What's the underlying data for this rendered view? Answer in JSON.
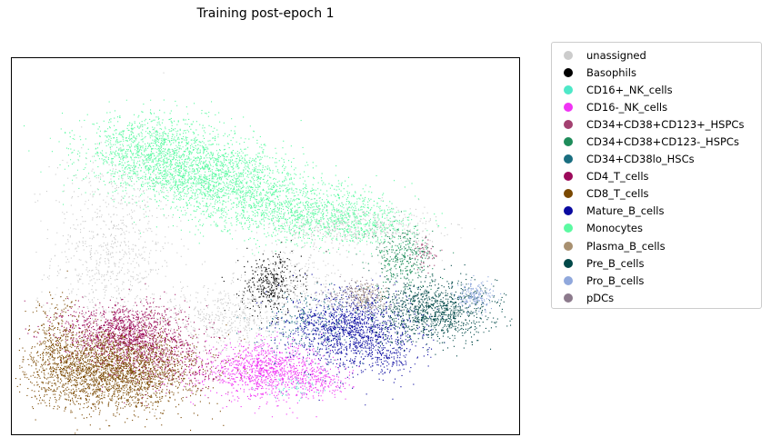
{
  "chart_data": {
    "type": "scatter",
    "title": "Training post-epoch 1",
    "xlabel": "",
    "ylabel": "",
    "axis_ticks": false,
    "grid": false,
    "legend_placement": "outside-right",
    "xlim": [
      0,
      100
    ],
    "ylim": [
      0,
      100
    ],
    "series": [
      {
        "name": "unassigned",
        "color": "#cccccc",
        "clusters": [
          {
            "cx": 20,
            "cy": 48,
            "sx": 6,
            "sy": 14,
            "n": 900
          },
          {
            "cx": 42,
            "cy": 31,
            "sx": 7,
            "sy": 4,
            "n": 500
          },
          {
            "cx": 68,
            "cy": 55,
            "sx": 8,
            "sy": 3,
            "n": 500
          },
          {
            "cx": 55,
            "cy": 40,
            "sx": 6,
            "sy": 5,
            "n": 300
          }
        ]
      },
      {
        "name": "Basophils",
        "color": "#000000",
        "clusters": [
          {
            "cx": 51,
            "cy": 40,
            "sx": 3,
            "sy": 4,
            "n": 350
          }
        ]
      },
      {
        "name": "CD16+_NK_cells",
        "color": "#4ee8c8",
        "clusters": [
          {
            "cx": 55,
            "cy": 13,
            "sx": 3,
            "sy": 1.5,
            "n": 60
          }
        ]
      },
      {
        "name": "CD16-_NK_cells",
        "color": "#f034f4",
        "clusters": [
          {
            "cx": 50,
            "cy": 17,
            "sx": 6,
            "sy": 3.5,
            "n": 1100
          },
          {
            "cx": 61,
            "cy": 14,
            "sx": 3,
            "sy": 2,
            "n": 150
          }
        ]
      },
      {
        "name": "CD34+CD38+CD123+_HSPCs",
        "color": "#a34070",
        "clusters": [
          {
            "cx": 81,
            "cy": 48,
            "sx": 1.2,
            "sy": 2,
            "n": 60
          }
        ]
      },
      {
        "name": "CD34+CD38+CD123-_HSPCs",
        "color": "#1e8c5a",
        "clusters": [
          {
            "cx": 77,
            "cy": 47,
            "sx": 3,
            "sy": 4,
            "n": 350
          }
        ]
      },
      {
        "name": "CD34+CD38lo_HSCs",
        "color": "#1a6e80",
        "clusters": [
          {
            "cx": 59,
            "cy": 30,
            "sx": 5,
            "sy": 4,
            "n": 250
          }
        ]
      },
      {
        "name": "CD4_T_cells",
        "color": "#9c0a5a",
        "clusters": [
          {
            "cx": 22,
            "cy": 27,
            "sx": 6,
            "sy": 4,
            "n": 1300
          },
          {
            "cx": 31,
            "cy": 19,
            "sx": 6,
            "sy": 4,
            "n": 400
          }
        ]
      },
      {
        "name": "CD8_T_cells",
        "color": "#7a4800",
        "clusters": [
          {
            "cx": 20,
            "cy": 17,
            "sx": 8,
            "sy": 5,
            "n": 2600
          },
          {
            "cx": 9,
            "cy": 24,
            "sx": 2.5,
            "sy": 6,
            "n": 300
          }
        ]
      },
      {
        "name": "Mature_B_cells",
        "color": "#0a0aa0",
        "clusters": [
          {
            "cx": 67,
            "cy": 28,
            "sx": 6,
            "sy": 5,
            "n": 1300
          },
          {
            "cx": 74,
            "cy": 21,
            "sx": 3,
            "sy": 3,
            "n": 150
          }
        ]
      },
      {
        "name": "Monocytes",
        "color": "#5cfaa2",
        "clusters": [
          {
            "cx": 28,
            "cy": 75,
            "sx": 7,
            "sy": 5,
            "n": 1300
          },
          {
            "cx": 40,
            "cy": 68,
            "sx": 8,
            "sy": 5,
            "n": 1400
          },
          {
            "cx": 55,
            "cy": 60,
            "sx": 9,
            "sy": 4,
            "n": 1100
          },
          {
            "cx": 68,
            "cy": 56,
            "sx": 6,
            "sy": 3,
            "n": 400
          }
        ]
      },
      {
        "name": "Plasma_B_cells",
        "color": "#a89070",
        "clusters": [
          {
            "cx": 70,
            "cy": 37,
            "sx": 2,
            "sy": 2,
            "n": 80
          }
        ]
      },
      {
        "name": "Pre_B_cells",
        "color": "#004848",
        "clusters": [
          {
            "cx": 83,
            "cy": 33,
            "sx": 6,
            "sy": 4,
            "n": 1100
          }
        ]
      },
      {
        "name": "Pro_B_cells",
        "color": "#90a8dc",
        "clusters": [
          {
            "cx": 91,
            "cy": 37,
            "sx": 2,
            "sy": 2,
            "n": 200
          }
        ]
      },
      {
        "name": "pDCs",
        "color": "#8c7a8c",
        "clusters": [
          {
            "cx": 68,
            "cy": 37,
            "sx": 3,
            "sy": 2,
            "n": 200
          }
        ]
      }
    ]
  }
}
